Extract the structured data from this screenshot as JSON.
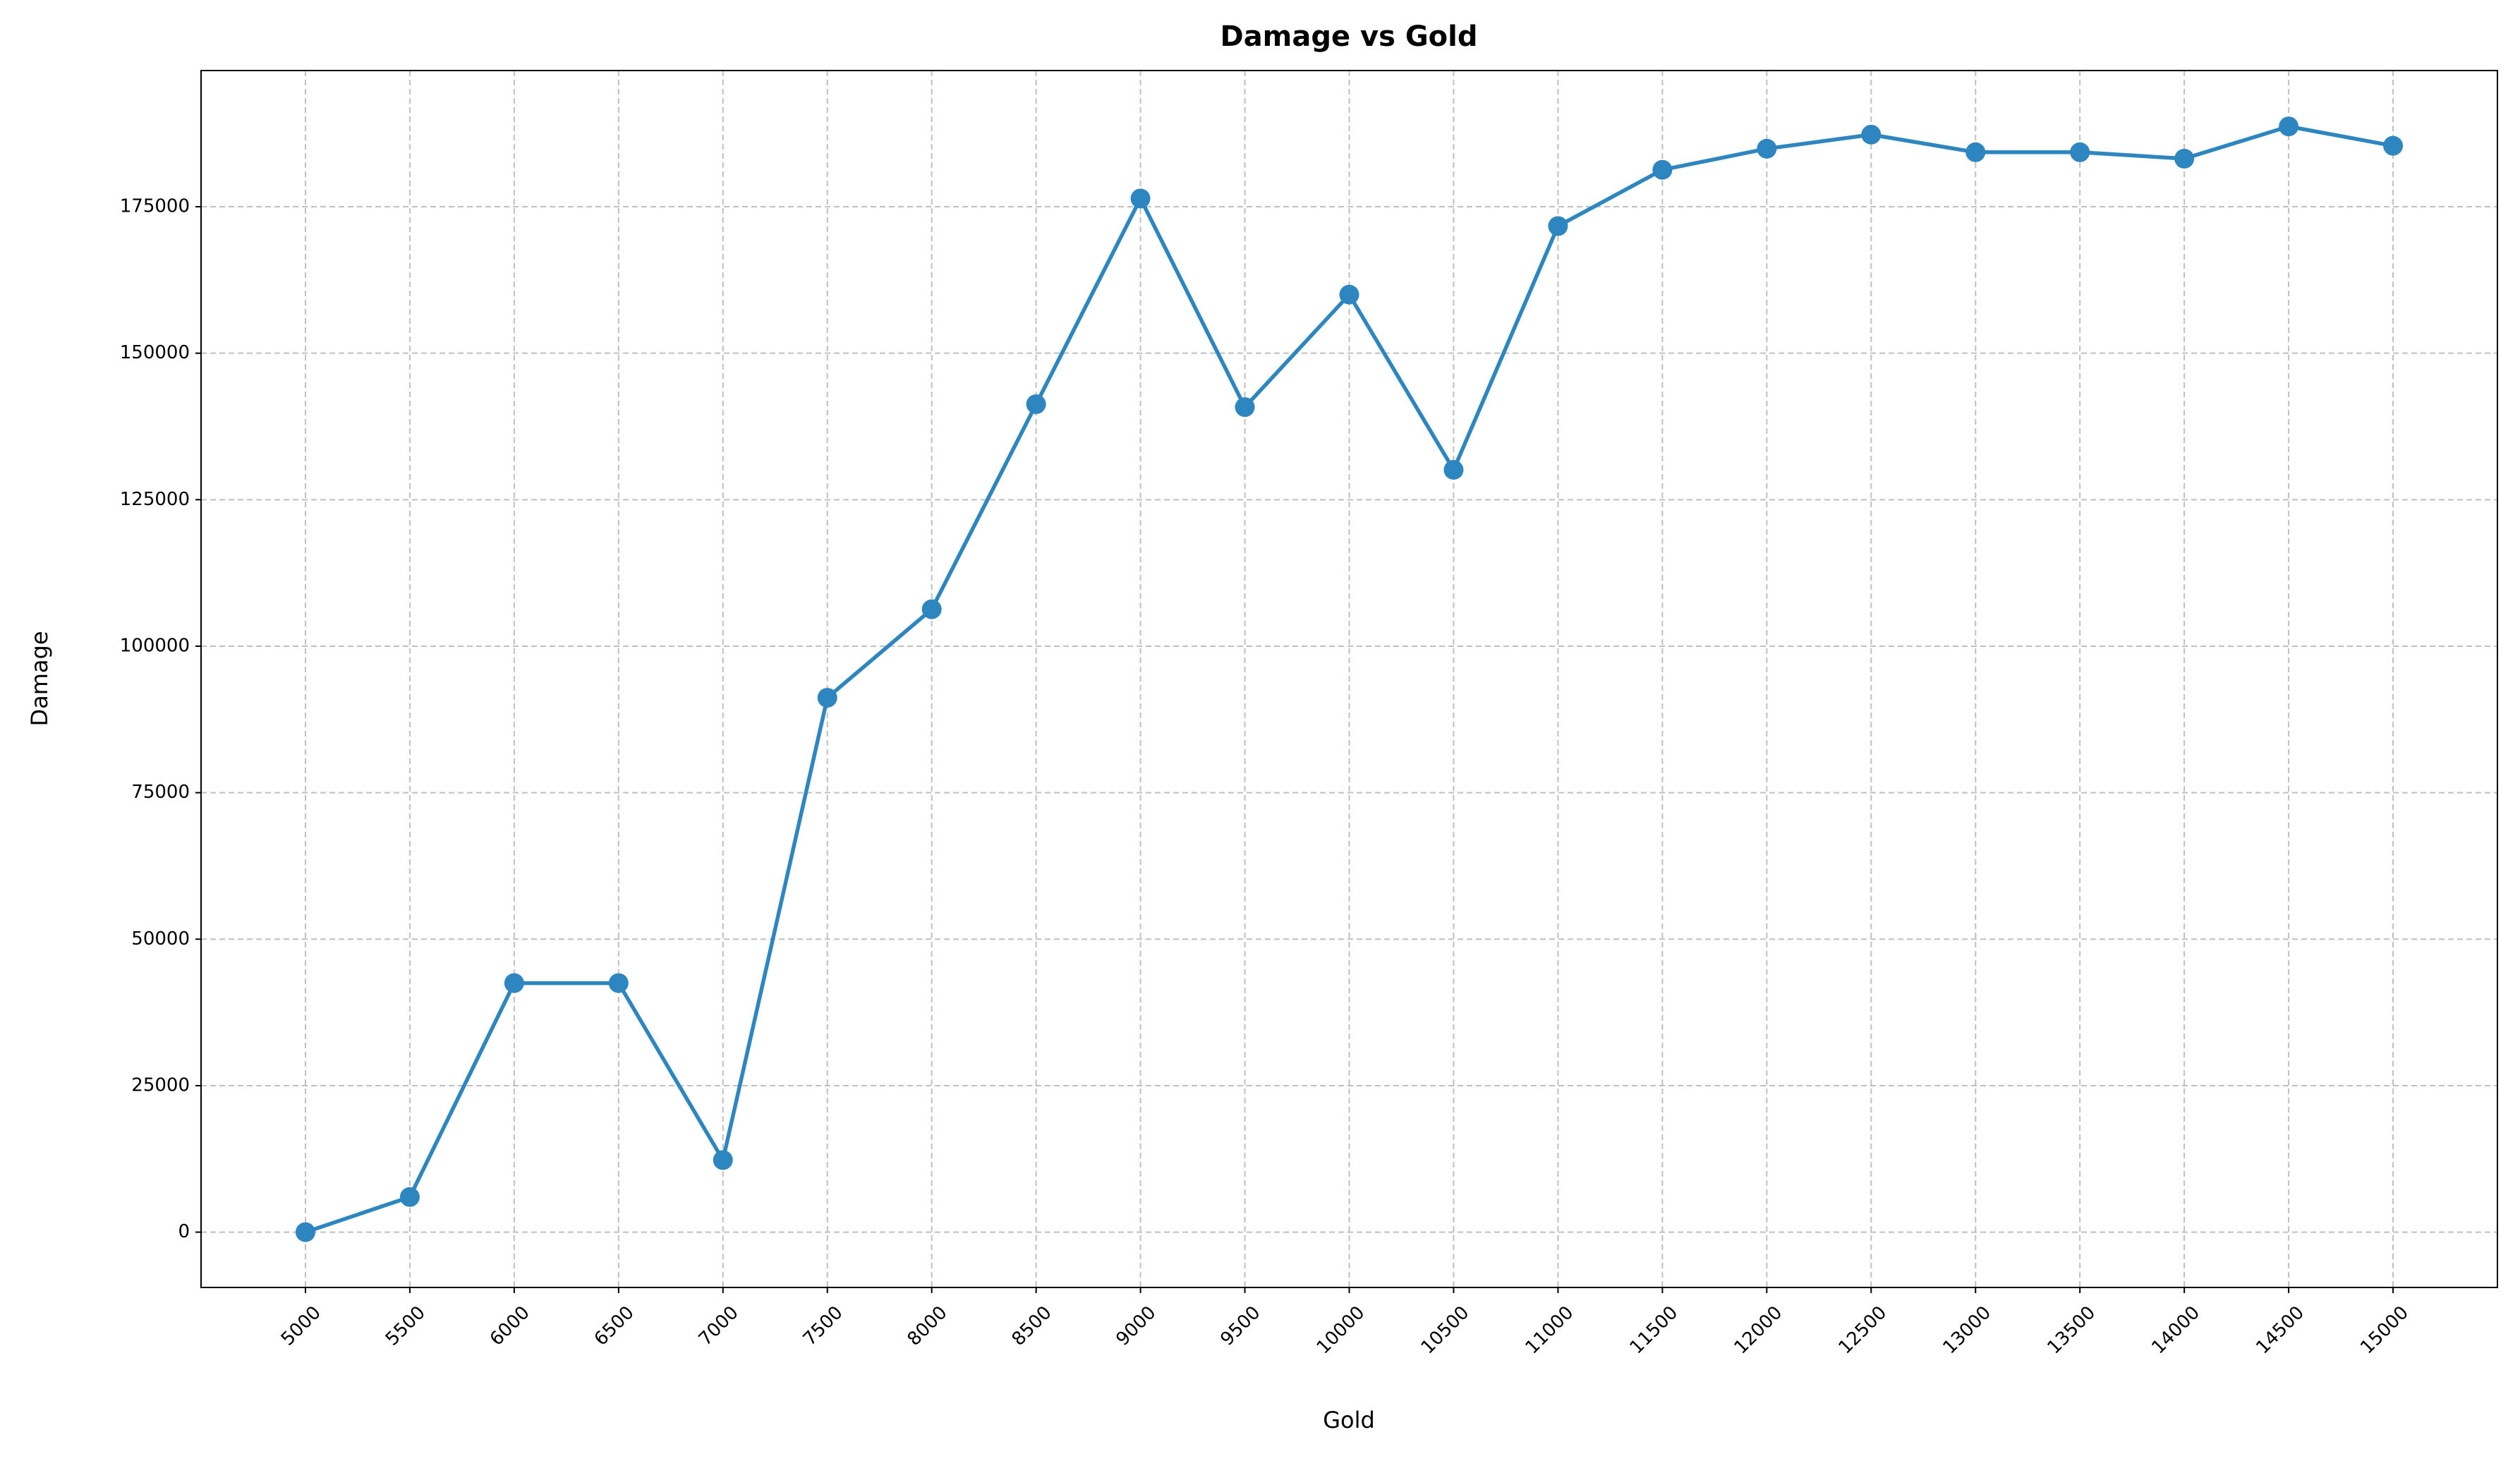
{
  "chart_data": {
    "type": "line",
    "title": "Damage vs Gold",
    "x_label": "Gold",
    "y_label": "Damage",
    "x": [
      5000,
      5500,
      6000,
      6500,
      7000,
      7500,
      8000,
      8500,
      9000,
      9500,
      10000,
      10500,
      11000,
      11500,
      12000,
      12500,
      13000,
      13500,
      14000,
      14500,
      15000
    ],
    "series": [
      {
        "name": "Damage",
        "color": "#2e86c1",
        "values": [
          0,
          6000,
          42500,
          42500,
          12300,
          91200,
          106300,
          141300,
          176400,
          140800,
          160000,
          130100,
          171700,
          181300,
          184900,
          187300,
          184300,
          184300,
          183200,
          188700,
          185400
        ]
      }
    ],
    "xlim": [
      4500,
      15500
    ],
    "ylim": [
      -9440,
      198240
    ],
    "xticks": [
      5000,
      5500,
      6000,
      6500,
      7000,
      7500,
      8000,
      8500,
      9000,
      9500,
      10000,
      10500,
      11000,
      11500,
      12000,
      12500,
      13000,
      13500,
      14000,
      14500,
      15000
    ],
    "yticks": [
      0,
      25000,
      50000,
      75000,
      100000,
      125000,
      150000,
      175000
    ],
    "grid": true
  }
}
